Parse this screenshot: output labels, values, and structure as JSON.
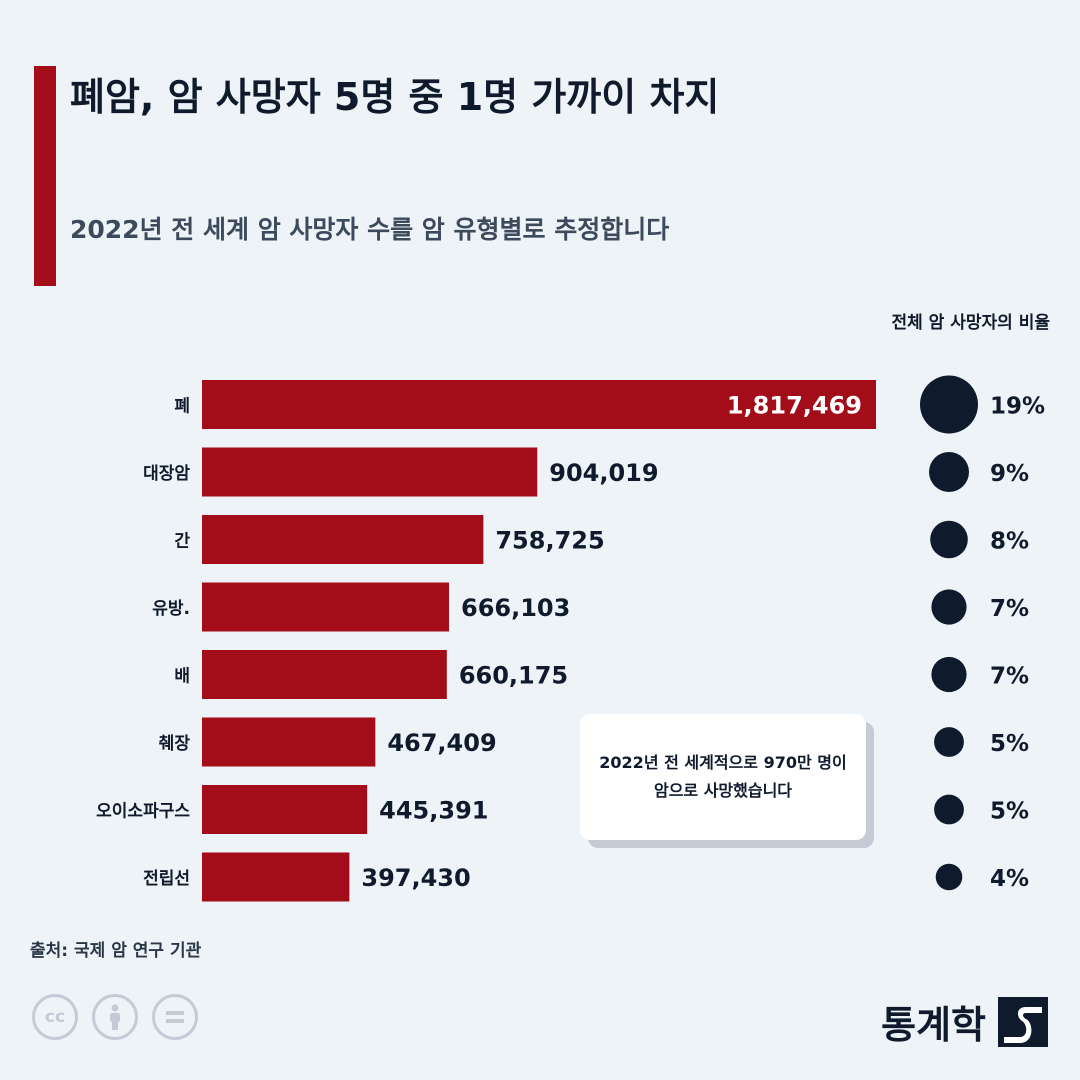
{
  "header": {
    "title": "폐암, 암 사망자 5명 중 1명 가까이 차지",
    "subtitle": "2022년 전 세계 암 사망자 수를 암 유형별로 추정합니다",
    "share_header": "전체 암 사망자의 비율"
  },
  "callout": {
    "text": "2022년 전 세계적으로 970만 명이 암으로 사망했습니다"
  },
  "footer": {
    "source": "출처: 국제 암 연구 기관",
    "license_icons": [
      "cc-icon",
      "person-icon",
      "equals-icon"
    ],
    "brand": "통계학"
  },
  "colors": {
    "bar": "#a30d1a",
    "dot": "#0f1b2d",
    "background": "#eef3f7",
    "label_on_bar": "#ffffff"
  },
  "chart_data": {
    "type": "bar",
    "orientation": "horizontal",
    "title": "폐암, 암 사망자 5명 중 1명 가까이 차지",
    "subtitle": "2022년 전 세계 암 사망자 수를 암 유형별로 추정합니다",
    "categories": [
      "폐",
      "대장암",
      "간",
      "유방.",
      "배",
      "췌장",
      "오이소파구스",
      "전립선"
    ],
    "values": [
      1817469,
      904019,
      758725,
      666103,
      660175,
      467409,
      445391,
      397430
    ],
    "value_labels": [
      "1,817,469",
      "904,019",
      "758,725",
      "666,103",
      "660,175",
      "467,409",
      "445,391",
      "397,430"
    ],
    "share_percent": [
      19,
      9,
      8,
      7,
      7,
      5,
      5,
      4
    ],
    "share_labels": [
      "19%",
      "9%",
      "8%",
      "7%",
      "7%",
      "5%",
      "5%",
      "4%"
    ],
    "share_header": "전체 암 사망자의 비율",
    "grid": false,
    "legend": "none"
  }
}
